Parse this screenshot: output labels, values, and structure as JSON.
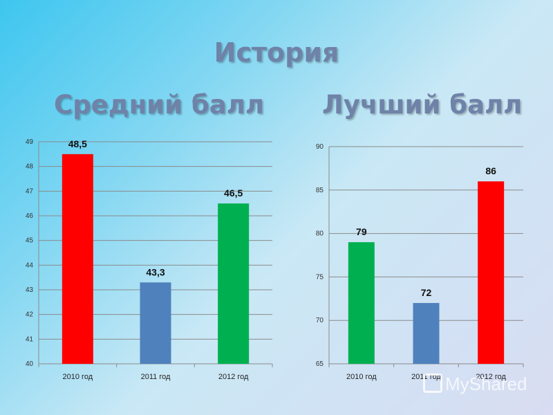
{
  "slide": {
    "title": "История"
  },
  "chart_data": [
    {
      "type": "bar",
      "title": "Средний балл",
      "categories": [
        "2010 год",
        "2011 год",
        "2012 год"
      ],
      "values": [
        48.5,
        43.3,
        46.5
      ],
      "value_labels": [
        "48,5",
        "43,3",
        "46,5"
      ],
      "colors": [
        "#ff0000",
        "#4f81bd",
        "#00b050"
      ],
      "ylim": [
        40,
        49
      ],
      "yticks": [
        40,
        41,
        42,
        43,
        44,
        45,
        46,
        47,
        48,
        49
      ],
      "grid": true,
      "xlabel": "",
      "ylabel": ""
    },
    {
      "type": "bar",
      "title": "Лучший балл",
      "categories": [
        "2010 год",
        "2011 год",
        "2012 год"
      ],
      "values": [
        79,
        72,
        86
      ],
      "value_labels": [
        "79",
        "72",
        "86"
      ],
      "colors": [
        "#00b050",
        "#4f81bd",
        "#ff0000"
      ],
      "ylim": [
        65,
        90
      ],
      "yticks": [
        65,
        70,
        75,
        80,
        85,
        90
      ],
      "grid": true,
      "xlabel": "",
      "ylabel": ""
    }
  ],
  "watermark": {
    "text": "MyShared"
  }
}
